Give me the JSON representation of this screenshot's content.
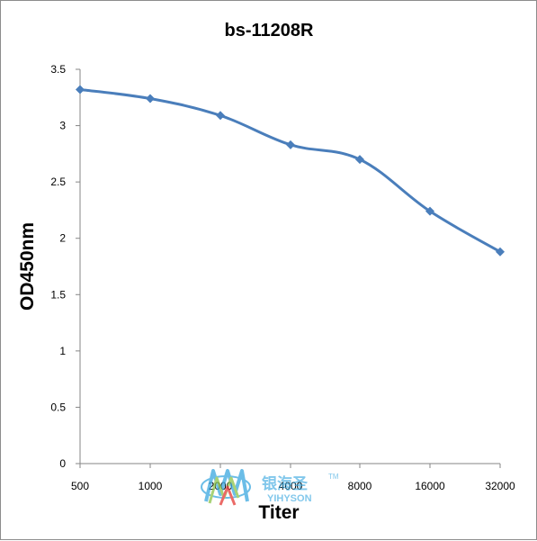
{
  "chart_data": {
    "type": "line",
    "title": "bs-11208R",
    "xlabel": "Titer",
    "ylabel": "OD450nm",
    "categories": [
      "500",
      "1000",
      "2000",
      "4000",
      "8000",
      "16000",
      "32000"
    ],
    "series": [
      {
        "values": [
          3.32,
          3.24,
          3.09,
          2.83,
          2.7,
          2.24,
          1.88
        ]
      }
    ],
    "ylim": [
      0,
      3.5
    ],
    "yticks": [
      "0",
      "0.5",
      "1",
      "1.5",
      "2",
      "2.5",
      "3",
      "3.5"
    ],
    "grid": false,
    "legend": "none",
    "line_color": "#4a7ebb",
    "marker": "diamond"
  },
  "watermark": {
    "cn": "银海圣",
    "en": "YIHYSON",
    "tm": "TM",
    "colors": [
      "#3aa8e0",
      "#8bc34a",
      "#e53935"
    ]
  }
}
